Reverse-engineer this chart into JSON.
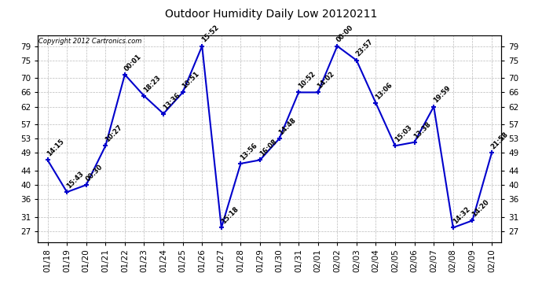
{
  "title": "Outdoor Humidity Daily Low 20120211",
  "copyright_text": "Copyright 2012 Cartronics.com",
  "background_color": "#ffffff",
  "plot_background": "#ffffff",
  "line_color": "#0000cc",
  "marker_color": "#0000cc",
  "grid_color": "#bbbbbb",
  "points": [
    {
      "x": 0,
      "label": "01/18",
      "value": 47,
      "time": "14:15"
    },
    {
      "x": 1,
      "label": "01/19",
      "value": 38,
      "time": "15:43"
    },
    {
      "x": 2,
      "label": "01/20",
      "value": 40,
      "time": "00:30"
    },
    {
      "x": 3,
      "label": "01/21",
      "value": 51,
      "time": "10:27"
    },
    {
      "x": 4,
      "label": "01/22",
      "value": 71,
      "time": "00:01"
    },
    {
      "x": 5,
      "label": "01/23",
      "value": 65,
      "time": "18:23"
    },
    {
      "x": 6,
      "label": "01/24",
      "value": 60,
      "time": "13:36"
    },
    {
      "x": 7,
      "label": "01/25",
      "value": 66,
      "time": "10:51"
    },
    {
      "x": 8,
      "label": "01/26",
      "value": 79,
      "time": "15:52"
    },
    {
      "x": 9,
      "label": "01/27",
      "value": 28,
      "time": "15:18"
    },
    {
      "x": 10,
      "label": "01/28",
      "value": 46,
      "time": "13:56"
    },
    {
      "x": 11,
      "label": "01/29",
      "value": 47,
      "time": "16:08"
    },
    {
      "x": 12,
      "label": "01/30",
      "value": 53,
      "time": "14:48"
    },
    {
      "x": 13,
      "label": "01/31",
      "value": 66,
      "time": "10:52"
    },
    {
      "x": 14,
      "label": "02/01",
      "value": 66,
      "time": "14:02"
    },
    {
      "x": 15,
      "label": "02/02",
      "value": 79,
      "time": "00:00"
    },
    {
      "x": 16,
      "label": "02/03",
      "value": 75,
      "time": "23:57"
    },
    {
      "x": 17,
      "label": "02/04",
      "value": 63,
      "time": "13:06"
    },
    {
      "x": 18,
      "label": "02/05",
      "value": 51,
      "time": "15:03"
    },
    {
      "x": 19,
      "label": "02/06",
      "value": 52,
      "time": "13:38"
    },
    {
      "x": 20,
      "label": "02/07",
      "value": 62,
      "time": "19:59"
    },
    {
      "x": 21,
      "label": "02/08",
      "value": 28,
      "time": "14:32"
    },
    {
      "x": 22,
      "label": "02/09",
      "value": 30,
      "time": "14:20"
    },
    {
      "x": 23,
      "label": "02/10",
      "value": 49,
      "time": "21:58"
    }
  ],
  "yticks": [
    27,
    31,
    36,
    40,
    44,
    49,
    53,
    57,
    62,
    66,
    70,
    75,
    79
  ],
  "ylim": [
    24,
    82
  ],
  "xlim": [
    -0.5,
    23.5
  ],
  "figsize": [
    6.9,
    3.75
  ],
  "dpi": 100
}
